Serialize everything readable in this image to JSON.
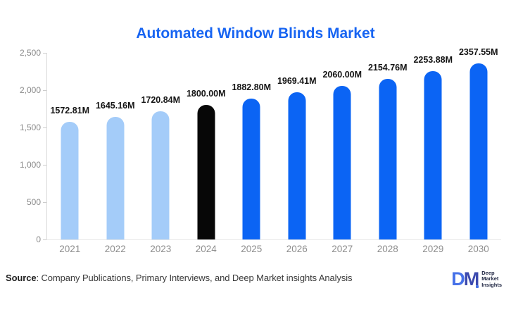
{
  "title": "Automated Window Blinds Market",
  "chart_data": {
    "type": "bar",
    "categories": [
      "2021",
      "2022",
      "2023",
      "2024",
      "2025",
      "2026",
      "2027",
      "2028",
      "2029",
      "2030"
    ],
    "values": [
      1572.81,
      1645.16,
      1720.84,
      1800.0,
      1882.8,
      1969.41,
      2060.0,
      2154.76,
      2253.88,
      2357.55
    ],
    "value_labels": [
      "1572.81M",
      "1645.16M",
      "1720.84M",
      "1800.00M",
      "1882.80M",
      "1969.41M",
      "2060.00M",
      "2154.76M",
      "2253.88M",
      "2357.55M"
    ],
    "bar_colors": [
      "#a4ccf9",
      "#a4ccf9",
      "#a4ccf9",
      "#070707",
      "#0b64f4",
      "#0b64f4",
      "#0b64f4",
      "#0b64f4",
      "#0b64f4",
      "#0b64f4"
    ],
    "title": "Automated Window Blinds Market",
    "xlabel": "",
    "ylabel": "",
    "ylim": [
      0,
      2500
    ],
    "ytick_values": [
      0,
      500,
      1000,
      1500,
      2000,
      2500
    ],
    "ytick_labels": [
      "0",
      "500",
      "1,000",
      "1,500",
      "2,000",
      "2,500"
    ],
    "grid": false,
    "legend": false,
    "unit": "M"
  },
  "footer": {
    "source_label": "Source",
    "source_text": ": Company Publications, Primary Interviews, and Deep Market insights Analysis"
  },
  "logo": {
    "monogram_d": "D",
    "monogram_m": "M",
    "lines": [
      "Deep",
      "Market",
      "Insights"
    ]
  },
  "colors": {
    "title_blue": "#1865f2",
    "bar_light_blue": "#a4ccf9",
    "bar_blue": "#0b64f4",
    "bar_black": "#070707",
    "axis_gray": "#d9d9d9",
    "tick_text_gray": "#8a8a8a"
  }
}
